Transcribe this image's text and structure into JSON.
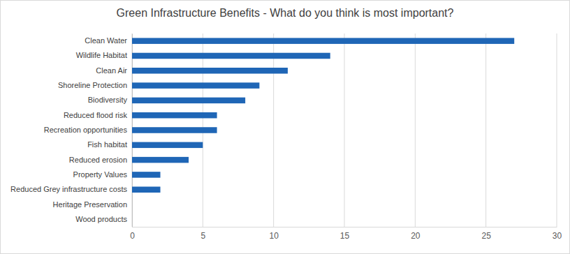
{
  "chart_data": {
    "type": "bar",
    "orientation": "horizontal",
    "title": "Green Infrastructure Benefits - What do you think is most important?",
    "categories": [
      "Clean Water",
      "Wildlife Habitat",
      "Clean Air",
      "Shoreline Protection",
      "Biodiversity",
      "Reduced flood risk",
      "Recreation opportunities",
      "Fish habitat",
      "Reduced erosion",
      "Property Values",
      "Reduced Grey infrastructure costs",
      "Heritage Preservation",
      "Wood products"
    ],
    "values": [
      27,
      14,
      11,
      9,
      8,
      6,
      6,
      5,
      4,
      2,
      2,
      0,
      0
    ],
    "color": "#1f66b6",
    "xlim": [
      0,
      30
    ],
    "xticks": [
      0,
      5,
      10,
      15,
      20,
      25,
      30
    ],
    "grid": true
  }
}
